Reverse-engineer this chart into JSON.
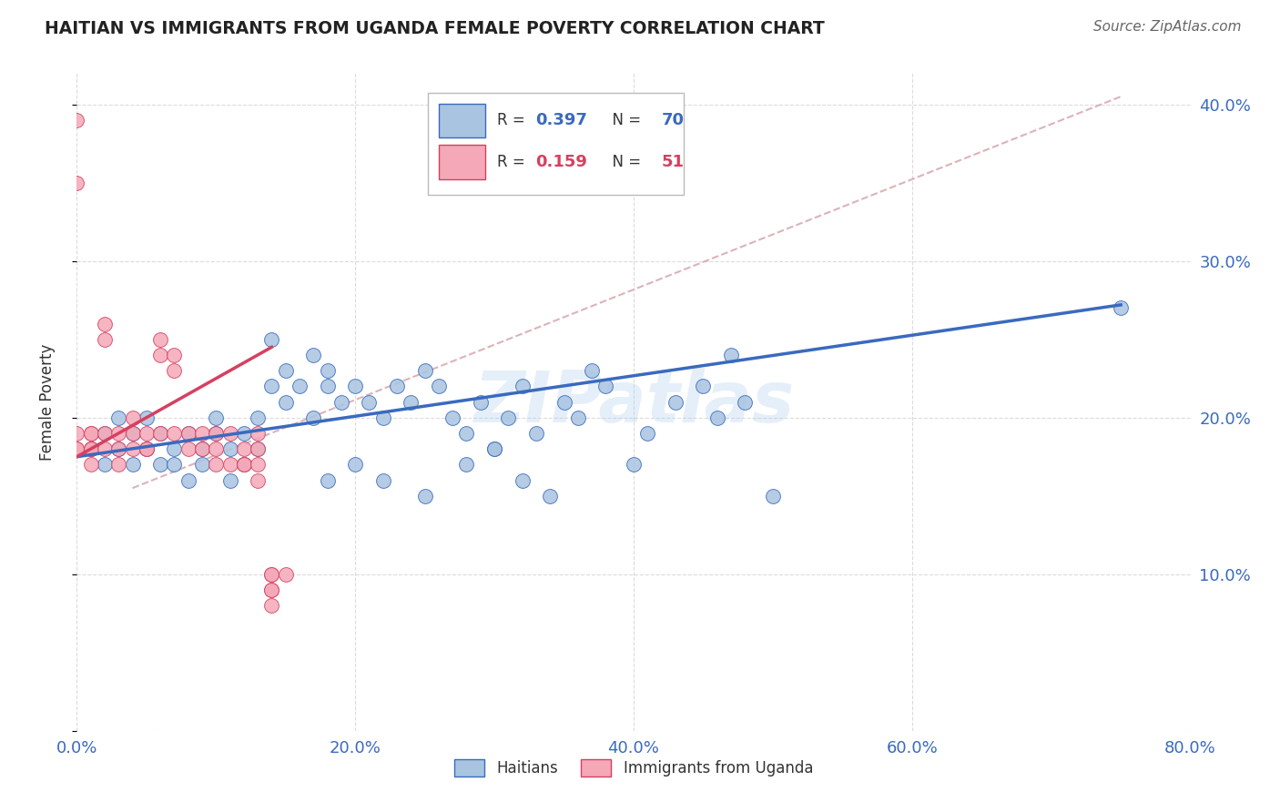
{
  "title": "HAITIAN VS IMMIGRANTS FROM UGANDA FEMALE POVERTY CORRELATION CHART",
  "source": "Source: ZipAtlas.com",
  "ylabel_label": "Female Poverty",
  "watermark": "ZIPatlas",
  "xlim": [
    0.0,
    0.8
  ],
  "ylim": [
    0.0,
    0.42
  ],
  "xticks": [
    0.0,
    0.2,
    0.4,
    0.6,
    0.8
  ],
  "xtick_labels": [
    "0.0%",
    "20.0%",
    "40.0%",
    "60.0%",
    "80.0%"
  ],
  "yticks": [
    0.0,
    0.1,
    0.2,
    0.3,
    0.4
  ],
  "ytick_labels_right": [
    "",
    "10.0%",
    "20.0%",
    "30.0%",
    "40.0%"
  ],
  "legend_blue_label": "Haitians",
  "legend_pink_label": "Immigrants from Uganda",
  "R_blue": 0.397,
  "N_blue": 70,
  "R_pink": 0.159,
  "N_pink": 51,
  "blue_color": "#a8c4e0",
  "pink_color": "#f4a8b8",
  "blue_line_color": "#3a6abf",
  "pink_line_color": "#d64060",
  "diagonal_color": "#d4a0a8",
  "blue_scatter_x": [
    0.01,
    0.02,
    0.02,
    0.03,
    0.03,
    0.04,
    0.04,
    0.05,
    0.05,
    0.06,
    0.06,
    0.07,
    0.07,
    0.08,
    0.08,
    0.09,
    0.09,
    0.1,
    0.1,
    0.11,
    0.11,
    0.12,
    0.12,
    0.13,
    0.13,
    0.14,
    0.15,
    0.15,
    0.16,
    0.17,
    0.17,
    0.18,
    0.18,
    0.19,
    0.2,
    0.21,
    0.22,
    0.23,
    0.24,
    0.25,
    0.26,
    0.27,
    0.28,
    0.29,
    0.3,
    0.31,
    0.32,
    0.33,
    0.35,
    0.36,
    0.37,
    0.38,
    0.4,
    0.41,
    0.43,
    0.45,
    0.46,
    0.47,
    0.48,
    0.5,
    0.14,
    0.18,
    0.2,
    0.22,
    0.25,
    0.28,
    0.75,
    0.3,
    0.32,
    0.34
  ],
  "blue_scatter_y": [
    0.18,
    0.19,
    0.17,
    0.2,
    0.18,
    0.19,
    0.17,
    0.18,
    0.2,
    0.17,
    0.19,
    0.18,
    0.17,
    0.19,
    0.16,
    0.18,
    0.17,
    0.2,
    0.19,
    0.18,
    0.16,
    0.19,
    0.17,
    0.2,
    0.18,
    0.22,
    0.23,
    0.21,
    0.22,
    0.24,
    0.2,
    0.23,
    0.22,
    0.21,
    0.22,
    0.21,
    0.2,
    0.22,
    0.21,
    0.23,
    0.22,
    0.2,
    0.19,
    0.21,
    0.18,
    0.2,
    0.22,
    0.19,
    0.21,
    0.2,
    0.23,
    0.22,
    0.17,
    0.19,
    0.21,
    0.22,
    0.2,
    0.24,
    0.21,
    0.15,
    0.25,
    0.16,
    0.17,
    0.16,
    0.15,
    0.17,
    0.27,
    0.18,
    0.16,
    0.15
  ],
  "pink_scatter_x": [
    0.0,
    0.0,
    0.0,
    0.0,
    0.0,
    0.01,
    0.01,
    0.01,
    0.01,
    0.01,
    0.02,
    0.02,
    0.02,
    0.02,
    0.03,
    0.03,
    0.03,
    0.04,
    0.04,
    0.04,
    0.05,
    0.05,
    0.05,
    0.06,
    0.06,
    0.06,
    0.07,
    0.07,
    0.07,
    0.08,
    0.08,
    0.09,
    0.09,
    0.1,
    0.1,
    0.1,
    0.11,
    0.11,
    0.12,
    0.12,
    0.12,
    0.13,
    0.13,
    0.13,
    0.13,
    0.14,
    0.14,
    0.14,
    0.14,
    0.14,
    0.15
  ],
  "pink_scatter_y": [
    0.39,
    0.35,
    0.18,
    0.18,
    0.19,
    0.19,
    0.18,
    0.19,
    0.18,
    0.17,
    0.26,
    0.25,
    0.19,
    0.18,
    0.19,
    0.18,
    0.17,
    0.2,
    0.19,
    0.18,
    0.19,
    0.18,
    0.18,
    0.25,
    0.24,
    0.19,
    0.24,
    0.23,
    0.19,
    0.19,
    0.18,
    0.19,
    0.18,
    0.19,
    0.18,
    0.17,
    0.19,
    0.17,
    0.18,
    0.17,
    0.17,
    0.19,
    0.18,
    0.17,
    0.16,
    0.1,
    0.1,
    0.09,
    0.09,
    0.08,
    0.1
  ],
  "blue_regr": [
    0.0,
    0.75,
    0.175,
    0.272
  ],
  "pink_regr": [
    0.0,
    0.14,
    0.175,
    0.245
  ],
  "diag_line": [
    0.04,
    0.75,
    0.155,
    0.405
  ]
}
